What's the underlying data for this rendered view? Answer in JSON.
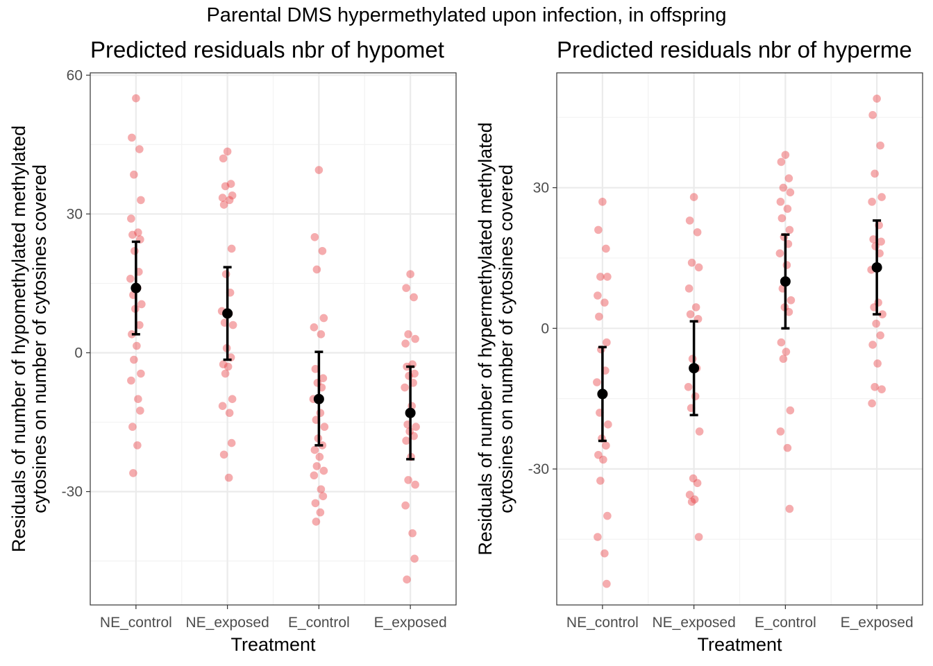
{
  "figure_title": "Parental DMS hypermethylated upon infection, in offspring",
  "colors": {
    "points": "#e8393f",
    "summary": "#000000",
    "grid_major": "#ebebeb",
    "grid_minor": "#f3f3f3",
    "panel_border": "#333333"
  },
  "chart_data": [
    {
      "type": "scatter",
      "title": "Predicted residuals nbr of hypomet",
      "xlabel": "Treatment",
      "ylabel": [
        "Residuals of number of hypomethylated methylated",
        "cytosines on number of cytosines covered"
      ],
      "categories": [
        "NE_control",
        "NE_exposed",
        "E_control",
        "E_exposed"
      ],
      "ylim": [
        -54.5,
        60.5
      ],
      "yticks": [
        -30,
        0,
        30,
        60
      ],
      "yticklabels": [
        "-30",
        "0",
        "30",
        "60"
      ],
      "grid": true,
      "points": [
        [
          55,
          46.5,
          44,
          38.5,
          33,
          29,
          26,
          25.5,
          24.5,
          22,
          17.5,
          16,
          14,
          12.5,
          10.5,
          9.5,
          6,
          4,
          1.5,
          -1.5,
          -4.5,
          -6,
          -10,
          -12.5,
          -16,
          -20,
          -26
        ],
        [
          43.5,
          42,
          36.5,
          36,
          34,
          33.5,
          33,
          32,
          22.5,
          17,
          13,
          9,
          8.5,
          6.5,
          6,
          1,
          -1,
          -2.5,
          -3,
          -4.5,
          -10,
          -11.5,
          -13,
          -19.5,
          -22,
          -27
        ],
        [
          39.5,
          25,
          22,
          18,
          7.5,
          5.5,
          4,
          -3.5,
          -5.5,
          -6.5,
          -7.5,
          -10,
          -13,
          -14.5,
          -16,
          -18.5,
          -20,
          -21,
          -22.5,
          -24.5,
          -25.5,
          -26.5,
          -29.5,
          -31,
          -32.5,
          -34.5,
          -36.5
        ],
        [
          17,
          14,
          12,
          4,
          3,
          2,
          -2.5,
          -3,
          -4.5,
          -5,
          -6.5,
          -7.5,
          -11.5,
          -15.5,
          -16,
          -17,
          -18,
          -19,
          -22.5,
          -27.5,
          -28.5,
          -33,
          -39,
          -44.5,
          -49
        ]
      ],
      "means": [
        14,
        8.5,
        -10,
        -13
      ],
      "ci_low": [
        4,
        -1.5,
        -20,
        -23
      ],
      "ci_high": [
        24,
        18.5,
        0.2,
        -3
      ]
    },
    {
      "type": "scatter",
      "title": "Predicted residuals nbr of hyperme",
      "xlabel": "Treatment",
      "ylabel": [
        "Residuals of number of hypermethylated methylated",
        "cytosines on number of cytosines covered"
      ],
      "categories": [
        "NE_control",
        "NE_exposed",
        "E_control",
        "E_exposed"
      ],
      "ylim": [
        -59,
        54.5
      ],
      "yticks": [
        -30,
        0,
        30
      ],
      "yticklabels": [
        "-30",
        "0",
        "30"
      ],
      "grid": true,
      "points": [
        [
          27,
          21,
          17,
          11,
          11,
          7,
          5.5,
          2.5,
          -3,
          -4.5,
          -9,
          -11.5,
          -14,
          -18,
          -20.5,
          -23.5,
          -25,
          -27,
          -28,
          -32.5,
          -40,
          -44.5,
          -48,
          -54.5
        ],
        [
          28,
          23,
          20.5,
          14,
          13,
          8.5,
          4.5,
          3,
          2,
          -6.5,
          -8.5,
          -12.5,
          -14.5,
          -17,
          -22,
          -32,
          -33,
          -35.5,
          -36.5,
          -37,
          -44.5
        ],
        [
          37,
          35.5,
          32,
          30,
          29,
          27,
          25.5,
          23.5,
          21,
          19.5,
          18,
          16,
          13.5,
          8.5,
          6,
          4.5,
          3.5,
          -3,
          -5,
          -6.5,
          -17.5,
          -22,
          -25.5,
          -38.5
        ],
        [
          49,
          45.5,
          39,
          33,
          28,
          27,
          22,
          19,
          18.5,
          17.5,
          16,
          12.5,
          5.5,
          4.5,
          3,
          1,
          -1.5,
          -3.5,
          -7.5,
          -12.5,
          -13,
          -16
        ]
      ],
      "means": [
        -14,
        -8.5,
        10,
        13
      ],
      "ci_low": [
        -24,
        -18.5,
        0,
        3
      ],
      "ci_high": [
        -4,
        1.5,
        20,
        23
      ]
    }
  ]
}
